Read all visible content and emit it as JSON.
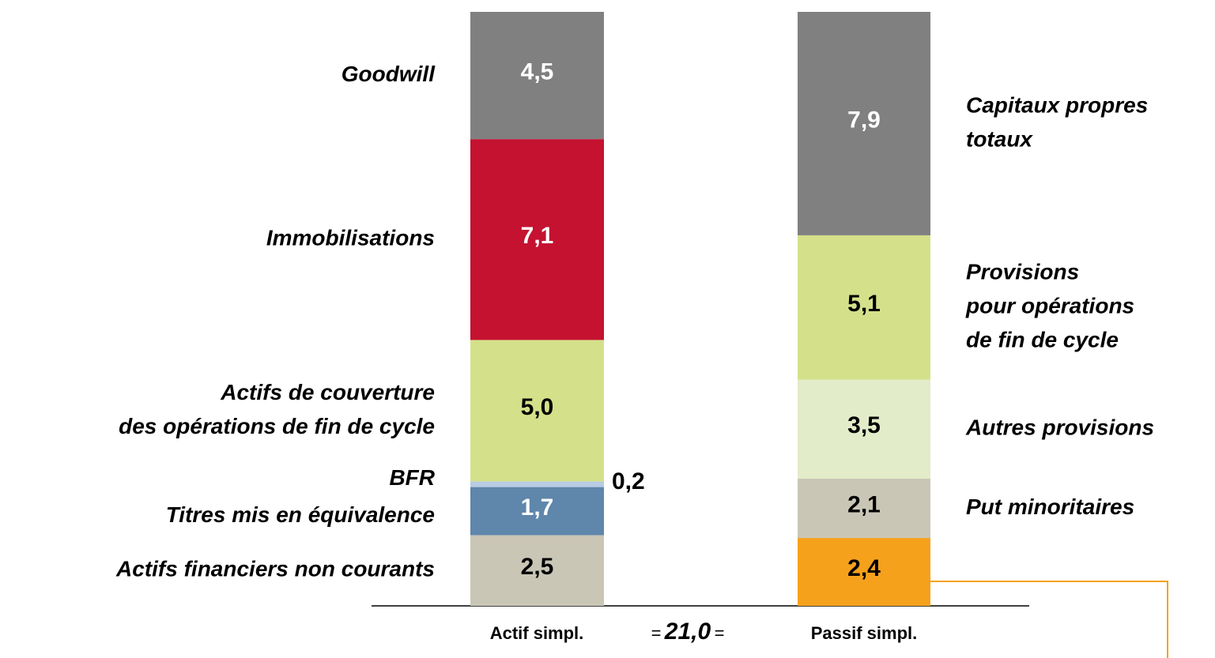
{
  "chart_data": {
    "type": "stacked_bar",
    "categories": [
      "Actif simpl.",
      "Passif simpl."
    ],
    "total_sign": "=",
    "total_label": "21,0",
    "stacks": [
      {
        "segments": [
          {
            "name": [
              "Actifs financiers non courants"
            ],
            "value": 2.5,
            "value_label": "2,5",
            "color": "#c9c6b6"
          },
          {
            "name": [
              "Titres mis en équivalence"
            ],
            "value": 1.7,
            "value_label": "1,7",
            "color": "#5f86ab"
          },
          {
            "name": [
              "BFR"
            ],
            "value": 0.2,
            "value_label": "0,2",
            "color": "#b8cce4"
          },
          {
            "name": [
              "Actifs de couverture",
              "des opérations de fin de cycle"
            ],
            "value": 5.0,
            "value_label": "5,0",
            "color": "#d4e18a"
          },
          {
            "name": [
              "Immobilisations"
            ],
            "value": 7.1,
            "value_label": "7,1",
            "color": "#c41230"
          },
          {
            "name": [
              "Goodwill"
            ],
            "value": 4.5,
            "value_label": "4,5",
            "color": "#808080"
          }
        ]
      },
      {
        "segments": [
          {
            "name": [],
            "value": 2.4,
            "value_label": "2,4",
            "color": "#f5a11c"
          },
          {
            "name": [
              "Put minoritaires"
            ],
            "value": 2.1,
            "value_label": "2,1",
            "color": "#c9c6b6"
          },
          {
            "name": [
              "Autres provisions"
            ],
            "value": 3.5,
            "value_label": "3,5",
            "color": "#e2ecc8"
          },
          {
            "name": [
              "Provisions",
              "pour opérations",
              "de fin de cycle"
            ],
            "value": 5.1,
            "value_label": "5,1",
            "color": "#d4e18a"
          },
          {
            "name": [
              "Capitaux propres",
              "totaux"
            ],
            "value": 7.9,
            "value_label": "7,9",
            "color": "#808080"
          }
        ]
      }
    ]
  }
}
